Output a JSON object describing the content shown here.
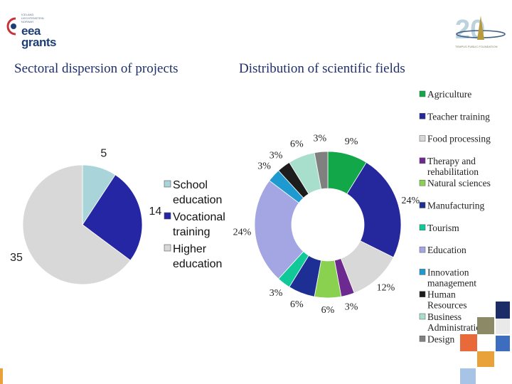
{
  "logos": {
    "left": {
      "small_text": "ICELAND LIECHTENSTEIN NORWAY",
      "line1": "eea",
      "line2": "grants",
      "icon": "eea-grants-logo-icon"
    },
    "right": {
      "subtitle": "TEMPUS PUBLIC FOUNDATION",
      "icon": "tempus-20-years-logo-icon"
    }
  },
  "headings": {
    "left": "Sectoral dispersion of projects",
    "right": "Distribution of scientific fields"
  },
  "chart_data": [
    {
      "type": "pie",
      "title": "Sectoral dispersion of projects",
      "categories": [
        "School education",
        "Vocational training",
        "Higher education"
      ],
      "legend": [
        [
          "School",
          "education"
        ],
        [
          "Vocational",
          "training"
        ],
        [
          "Higher",
          "education"
        ]
      ],
      "values": [
        5,
        14,
        35
      ],
      "data_labels": [
        "5",
        "14",
        "35"
      ],
      "colors": [
        "#a9d5da",
        "#2426a3",
        "#d8d8d8"
      ],
      "legend_position": "right"
    },
    {
      "type": "pie",
      "subtype": "donut",
      "title": "Distribution of scientific fields",
      "categories": [
        "Agriculture",
        "Teacher training",
        "Food processing",
        "Therapy and rehabilitation",
        "Natural sciences",
        "Manufacturing",
        "Tourism",
        "Education",
        "Innovation management",
        "Human Resources",
        "Business Administration",
        "Design"
      ],
      "legend": [
        [
          "Agriculture"
        ],
        [
          "Teacher training"
        ],
        [
          "Food processing"
        ],
        [
          "Therapy and",
          "rehabilitation"
        ],
        [
          "Natural sciences"
        ],
        [
          "Manufacturing"
        ],
        [
          "Tourism"
        ],
        [
          "Education"
        ],
        [
          "Innovation",
          "management"
        ],
        [
          "Human",
          "Resources"
        ],
        [
          "Business",
          "Administration"
        ],
        [
          "Design"
        ]
      ],
      "values": [
        9,
        24,
        12,
        3,
        6,
        6,
        3,
        24,
        3,
        3,
        6,
        3
      ],
      "data_labels": [
        "9%",
        "24%",
        "12%",
        "3%",
        "6%",
        "6%",
        "3%",
        "24%",
        "3%",
        "3%",
        "6%",
        "3%"
      ],
      "colors": [
        "#12a84a",
        "#25279c",
        "#d8d8d8",
        "#6c2a91",
        "#8bd150",
        "#1d2e94",
        "#10c898",
        "#a3a6e3",
        "#1e9ad0",
        "#1d1d1d",
        "#a8dfcc",
        "#808080"
      ],
      "legend_position": "right"
    }
  ]
}
